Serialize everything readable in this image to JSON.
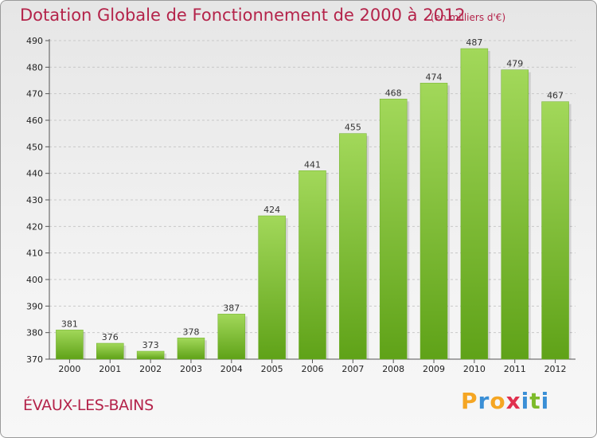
{
  "title": "Dotation Globale de Fonctionnement de 2000 à 2012",
  "subtitle": "(en milliers d'€)",
  "commune": "ÉVAUX-LES-BAINS",
  "brand": {
    "letters": [
      "P",
      "r",
      "o",
      "x",
      "i",
      "t",
      "i"
    ],
    "colors": [
      "#f5a623",
      "#3a8fd6",
      "#f5a623",
      "#e0304e",
      "#3a8fd6",
      "#7dbb2a",
      "#3a8fd6"
    ]
  },
  "colors": {
    "bar_light": "#a2d85a",
    "bar_dark": "#5fa218",
    "text_accent": "#b4234a"
  },
  "chart_data": {
    "type": "bar",
    "categories": [
      "2000",
      "2001",
      "2002",
      "2003",
      "2004",
      "2005",
      "2006",
      "2007",
      "2008",
      "2009",
      "2010",
      "2011",
      "2012"
    ],
    "values": [
      381,
      376,
      373,
      378,
      387,
      424,
      441,
      455,
      468,
      474,
      487,
      479,
      467
    ],
    "ylim": [
      370,
      490
    ],
    "yticks": [
      370,
      380,
      390,
      400,
      410,
      420,
      430,
      440,
      450,
      460,
      470,
      480,
      490
    ],
    "grid": true,
    "xlabel": "",
    "ylabel": ""
  }
}
